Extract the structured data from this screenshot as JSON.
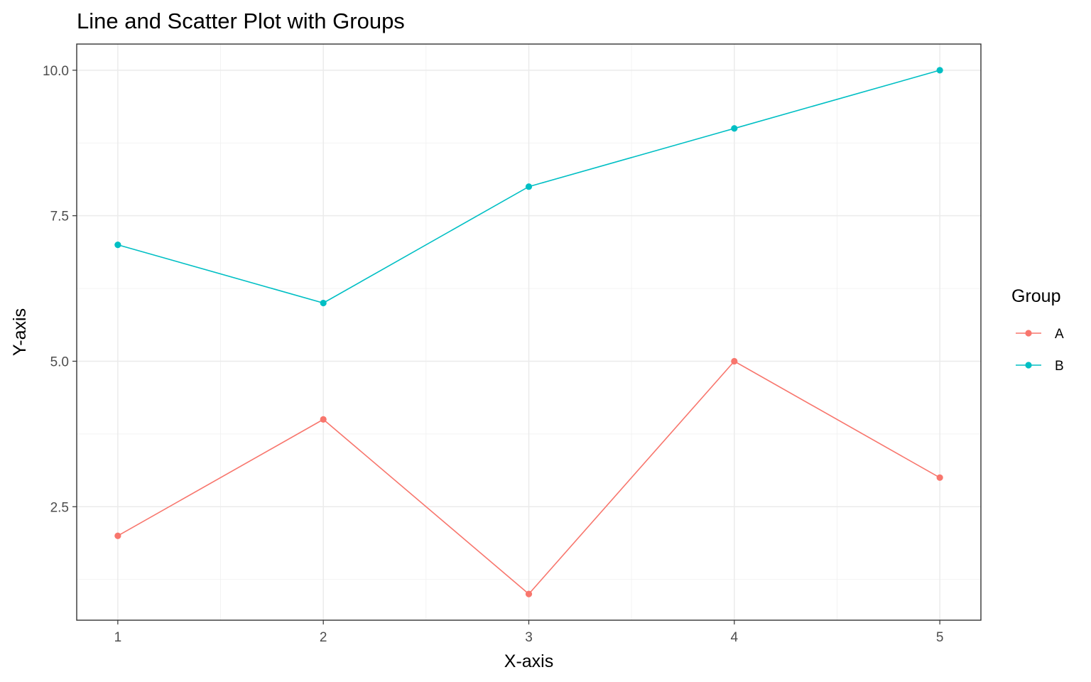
{
  "chart_data": {
    "type": "line",
    "title": "Line and Scatter Plot with Groups",
    "xlabel": "X-axis",
    "ylabel": "Y-axis",
    "x": [
      1,
      2,
      3,
      4,
      5
    ],
    "x_ticks": [
      "1",
      "2",
      "3",
      "4",
      "5"
    ],
    "y_ticks": [
      "2.5",
      "5.0",
      "7.5",
      "10.0"
    ],
    "y_tick_values": [
      2.5,
      5.0,
      7.5,
      10.0
    ],
    "xlim": [
      0.8,
      5.2
    ],
    "ylim": [
      0.55,
      10.45
    ],
    "grid": true,
    "markers": true,
    "legend": {
      "title": "Group",
      "position": "right"
    },
    "series": [
      {
        "name": "A",
        "color": "#F8766D",
        "values": [
          2,
          4,
          1,
          5,
          3
        ]
      },
      {
        "name": "B",
        "color": "#00BFC4",
        "values": [
          7,
          6,
          8,
          9,
          10
        ]
      }
    ]
  }
}
